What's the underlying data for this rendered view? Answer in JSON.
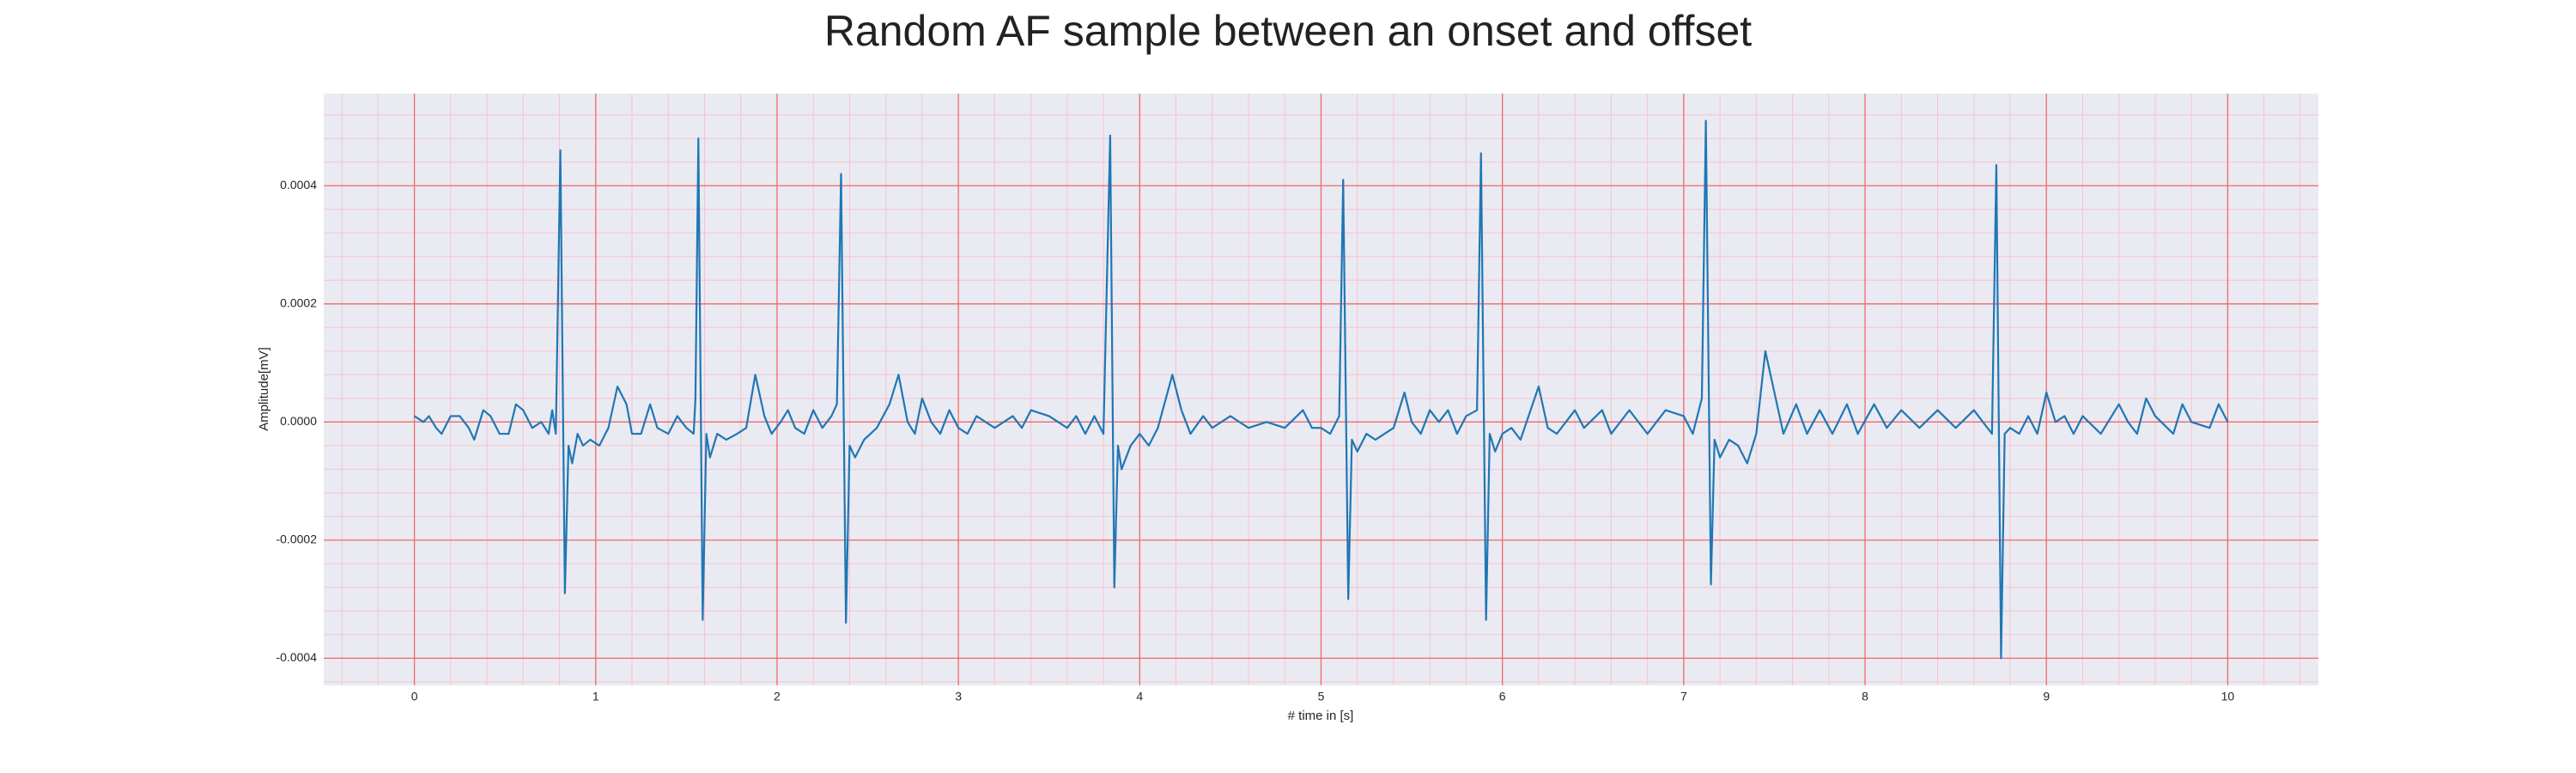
{
  "chart_data": {
    "type": "line",
    "title": "Random AF sample between an onset and offset",
    "xlabel": "# time in [s]",
    "ylabel": "Amplitude[mV]",
    "xlim": [
      -0.5,
      10.5
    ],
    "ylim": [
      -0.000446,
      0.000556
    ],
    "xticks": [
      0,
      1,
      2,
      3,
      4,
      5,
      6,
      7,
      8,
      9,
      10
    ],
    "yticks": [
      -0.0004,
      -0.0002,
      {
        "value": 0,
        "label": "0.0000"
      },
      0.0002,
      0.0004
    ],
    "grid": true,
    "grid_color": "#f06a6a",
    "minor_grid": true,
    "minor_divisions": 5,
    "minor_grid_color": "#f3c4cf",
    "background": "#eaeaf2",
    "series": [
      {
        "color": "#1f77b4",
        "x": [
          0.0,
          0.05,
          0.08,
          0.12,
          0.15,
          0.2,
          0.25,
          0.3,
          0.33,
          0.38,
          0.42,
          0.47,
          0.52,
          0.56,
          0.6,
          0.65,
          0.7,
          0.74,
          0.76,
          0.78,
          0.805,
          0.83,
          0.85,
          0.87,
          0.9,
          0.93,
          0.97,
          1.02,
          1.07,
          1.12,
          1.17,
          1.2,
          1.25,
          1.3,
          1.34,
          1.4,
          1.45,
          1.5,
          1.54,
          1.55,
          1.566,
          1.59,
          1.61,
          1.63,
          1.67,
          1.72,
          1.78,
          1.83,
          1.88,
          1.93,
          1.97,
          2.02,
          2.06,
          2.1,
          2.15,
          2.2,
          2.25,
          2.3,
          2.33,
          2.353,
          2.38,
          2.4,
          2.43,
          2.48,
          2.55,
          2.62,
          2.67,
          2.72,
          2.76,
          2.8,
          2.85,
          2.9,
          2.95,
          3.0,
          3.05,
          3.1,
          3.2,
          3.3,
          3.35,
          3.4,
          3.5,
          3.6,
          3.65,
          3.7,
          3.75,
          3.8,
          3.837,
          3.86,
          3.88,
          3.9,
          3.95,
          4.0,
          4.05,
          4.1,
          4.18,
          4.23,
          4.28,
          4.35,
          4.4,
          4.5,
          4.6,
          4.7,
          4.8,
          4.9,
          4.95,
          5.0,
          5.05,
          5.1,
          5.122,
          5.15,
          5.17,
          5.2,
          5.25,
          5.3,
          5.35,
          5.4,
          5.46,
          5.5,
          5.55,
          5.6,
          5.65,
          5.7,
          5.75,
          5.8,
          5.86,
          5.882,
          5.91,
          5.93,
          5.96,
          6.0,
          6.05,
          6.1,
          6.2,
          6.25,
          6.3,
          6.4,
          6.45,
          6.55,
          6.6,
          6.7,
          6.8,
          6.9,
          7.0,
          7.05,
          7.1,
          7.122,
          7.15,
          7.17,
          7.2,
          7.25,
          7.3,
          7.35,
          7.4,
          7.45,
          7.5,
          7.55,
          7.62,
          7.68,
          7.75,
          7.82,
          7.9,
          7.96,
          8.05,
          8.12,
          8.2,
          8.3,
          8.4,
          8.5,
          8.6,
          8.7,
          8.724,
          8.75,
          8.77,
          8.8,
          8.85,
          8.9,
          8.95,
          9.0,
          9.05,
          9.1,
          9.15,
          9.2,
          9.3,
          9.4,
          9.45,
          9.5,
          9.55,
          9.6,
          9.7,
          9.75,
          9.8,
          9.9,
          9.95,
          10.0
        ],
        "values": [
          1e-05,
          0,
          1e-05,
          -1e-05,
          -2e-05,
          1e-05,
          1e-05,
          -1e-05,
          -3e-05,
          2e-05,
          1e-05,
          -2e-05,
          -2e-05,
          3e-05,
          2e-05,
          -1e-05,
          0,
          -2e-05,
          2e-05,
          -2e-05,
          0.00046,
          -0.00029,
          -4e-05,
          -7e-05,
          -2e-05,
          -4e-05,
          -3e-05,
          -4e-05,
          -1e-05,
          6e-05,
          3e-05,
          -2e-05,
          -2e-05,
          3e-05,
          -1e-05,
          -2e-05,
          1e-05,
          -1e-05,
          -2e-05,
          4e-05,
          0.00048,
          -0.000335,
          -2e-05,
          -6e-05,
          -2e-05,
          -3e-05,
          -2e-05,
          -1e-05,
          8e-05,
          1e-05,
          -2e-05,
          0,
          2e-05,
          -1e-05,
          -2e-05,
          2e-05,
          -1e-05,
          1e-05,
          3e-05,
          0.00042,
          -0.00034,
          -4e-05,
          -6e-05,
          -3e-05,
          -1e-05,
          3e-05,
          8e-05,
          0,
          -2e-05,
          4e-05,
          0,
          -2e-05,
          2e-05,
          -1e-05,
          -2e-05,
          1e-05,
          -1e-05,
          1e-05,
          -1e-05,
          2e-05,
          1e-05,
          -1e-05,
          1e-05,
          -2e-05,
          1e-05,
          -2e-05,
          0.000485,
          -0.00028,
          -4e-05,
          -8e-05,
          -4e-05,
          -2e-05,
          -4e-05,
          -1e-05,
          8e-05,
          2e-05,
          -2e-05,
          1e-05,
          -1e-05,
          1e-05,
          -1e-05,
          0,
          -1e-05,
          2e-05,
          -1e-05,
          -1e-05,
          -2e-05,
          1e-05,
          0.00041,
          -0.0003,
          -3e-05,
          -5e-05,
          -2e-05,
          -3e-05,
          -2e-05,
          -1e-05,
          5e-05,
          0,
          -2e-05,
          2e-05,
          0,
          2e-05,
          -2e-05,
          1e-05,
          2e-05,
          0.000455,
          -0.000335,
          -2e-05,
          -5e-05,
          -2e-05,
          -1e-05,
          -3e-05,
          6e-05,
          -1e-05,
          -2e-05,
          2e-05,
          -1e-05,
          2e-05,
          -2e-05,
          2e-05,
          -2e-05,
          2e-05,
          1e-05,
          -2e-05,
          4e-05,
          0.00051,
          -0.000275,
          -3e-05,
          -6e-05,
          -3e-05,
          -4e-05,
          -7e-05,
          -2e-05,
          0.00012,
          5e-05,
          -2e-05,
          3e-05,
          -2e-05,
          2e-05,
          -2e-05,
          3e-05,
          -2e-05,
          3e-05,
          -1e-05,
          2e-05,
          -1e-05,
          2e-05,
          -1e-05,
          2e-05,
          -2e-05,
          0.000435,
          -0.0004,
          -2e-05,
          -1e-05,
          -2e-05,
          1e-05,
          -2e-05,
          5e-05,
          0,
          1e-05,
          -2e-05,
          1e-05,
          -2e-05,
          3e-05,
          0,
          -2e-05,
          4e-05,
          1e-05,
          -2e-05,
          3e-05,
          0,
          -1e-05,
          3e-05,
          0
        ]
      }
    ]
  }
}
